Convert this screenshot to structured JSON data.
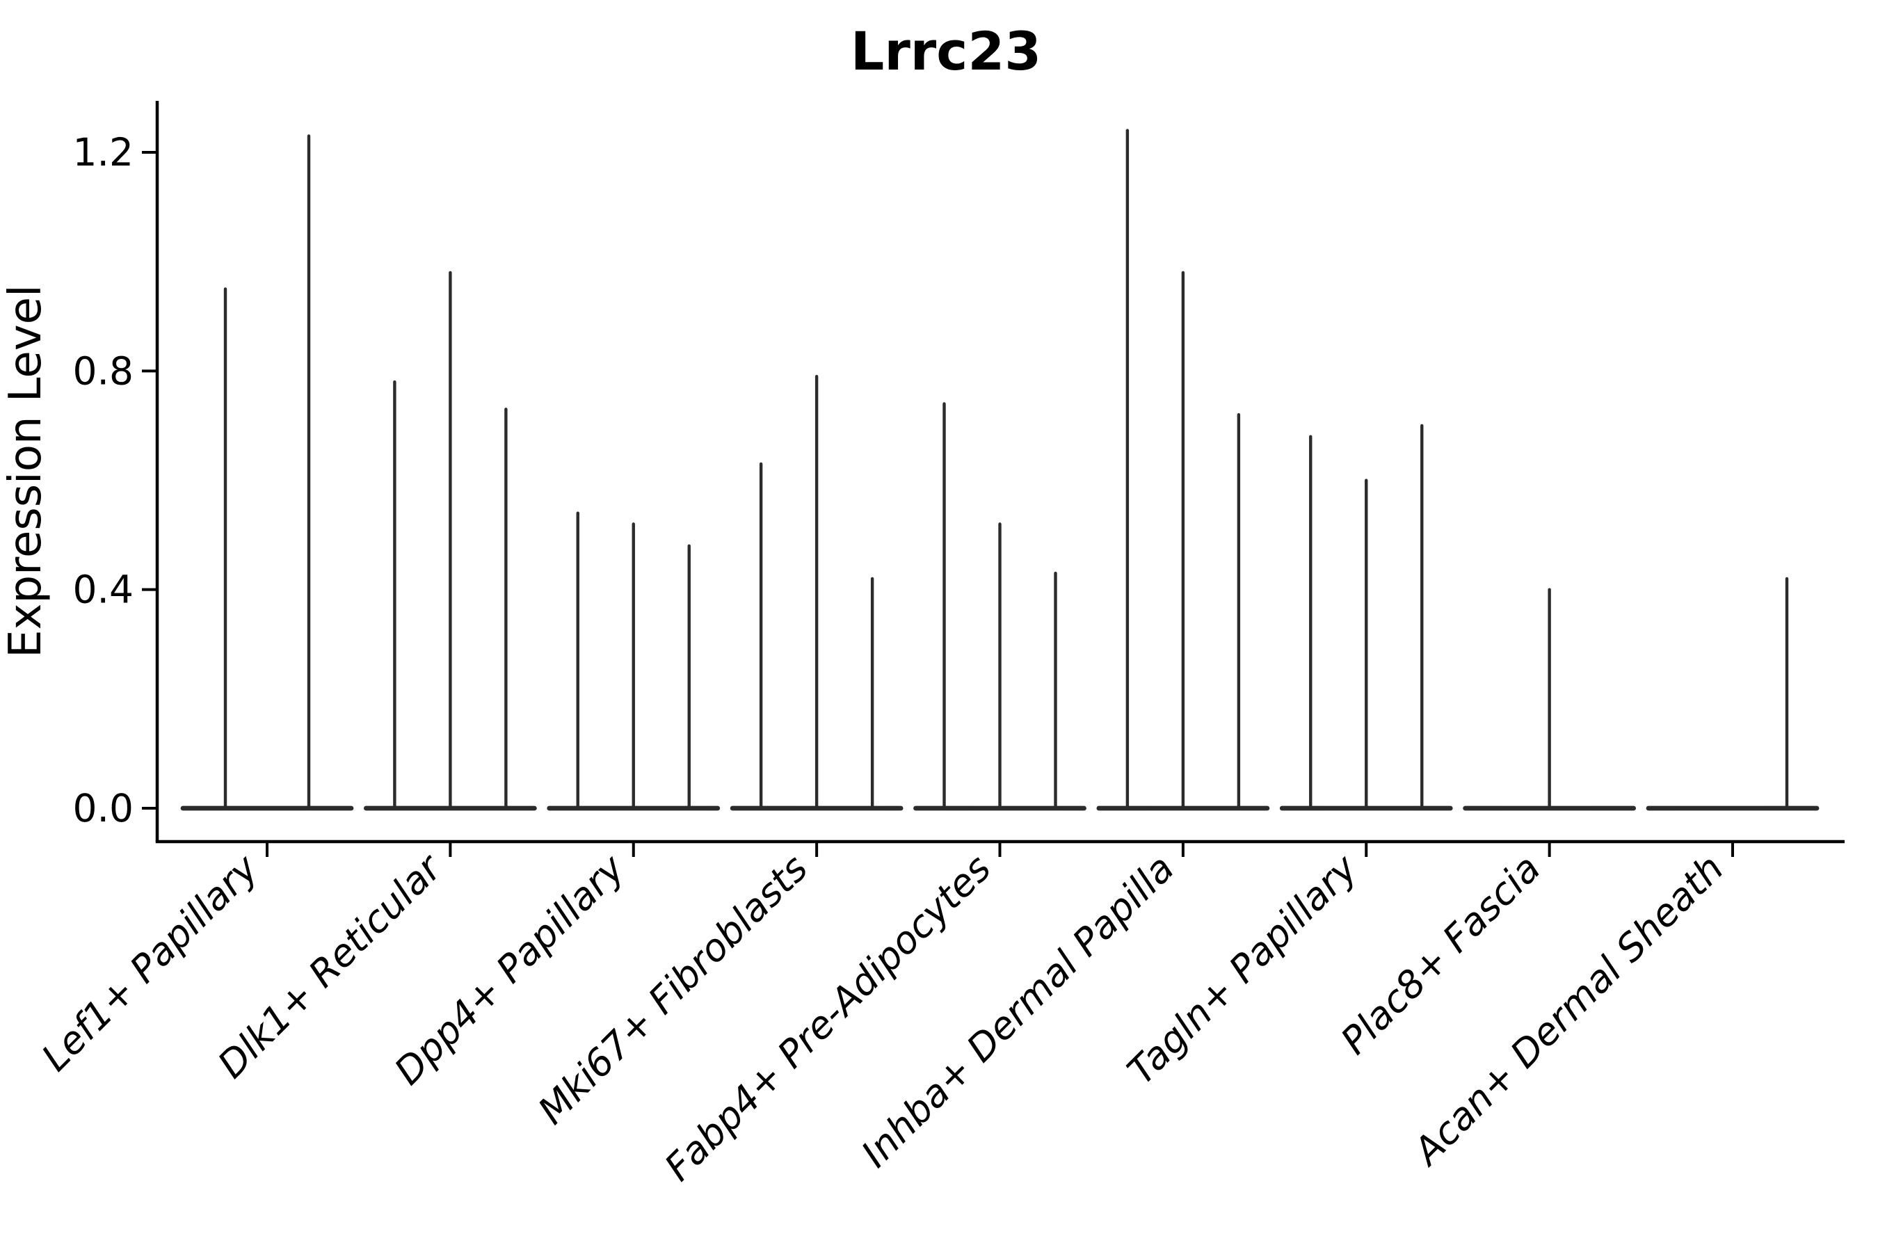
{
  "title": "Lrrc23",
  "ylabel": "Expression Level",
  "colors": {
    "violin": "#2b2b2b",
    "axis": "#000000",
    "background": "#ffffff"
  },
  "chart_data": {
    "type": "violin",
    "title": "Lrrc23",
    "xlabel": "",
    "ylabel": "Expression Level",
    "yticks": [
      "0.0",
      "0.4",
      "0.8",
      "1.2"
    ],
    "ytick_values": [
      0.0,
      0.4,
      0.8,
      1.2
    ],
    "ylim": [
      -0.06,
      1.29
    ],
    "grid": false,
    "legend": "none",
    "categories": [
      "Lef1+ Papillary",
      "Dlk1+ Reticular",
      "Dpp4+ Papillary",
      "Mki67+ Fibroblasts",
      "Fabp4+ Pre-Adipocytes",
      "Inhba+ Dermal Papilla",
      "Tagln+ Papillary",
      "Plac8+ Fascia",
      "Acan+ Dermal Sheath"
    ],
    "groups": [
      {
        "label": "Lef1+ Papillary",
        "violins": [
          {
            "offset": -60,
            "max": 0.95
          },
          {
            "offset": 60,
            "max": 1.23
          }
        ]
      },
      {
        "label": "Dlk1+ Reticular",
        "violins": [
          {
            "offset": -80,
            "max": 0.78
          },
          {
            "offset": 0,
            "max": 0.98
          },
          {
            "offset": 80,
            "max": 0.73
          }
        ]
      },
      {
        "label": "Dpp4+ Papillary",
        "violins": [
          {
            "offset": -80,
            "max": 0.54
          },
          {
            "offset": 0,
            "max": 0.52
          },
          {
            "offset": 80,
            "max": 0.48
          }
        ]
      },
      {
        "label": "Mki67+ Fibroblasts",
        "violins": [
          {
            "offset": -80,
            "max": 0.63
          },
          {
            "offset": 0,
            "max": 0.79
          },
          {
            "offset": 80,
            "max": 0.42
          }
        ]
      },
      {
        "label": "Fabp4+ Pre-Adipocytes",
        "violins": [
          {
            "offset": -80,
            "max": 0.74
          },
          {
            "offset": 0,
            "max": 0.52
          },
          {
            "offset": 80,
            "max": 0.43
          }
        ]
      },
      {
        "label": "Inhba+ Dermal Papilla",
        "violins": [
          {
            "offset": -80,
            "max": 1.24
          },
          {
            "offset": 0,
            "max": 0.98
          },
          {
            "offset": 80,
            "max": 0.72
          }
        ]
      },
      {
        "label": "Tagln+ Papillary",
        "violins": [
          {
            "offset": -80,
            "max": 0.68
          },
          {
            "offset": 0,
            "max": 0.6
          },
          {
            "offset": 80,
            "max": 0.7
          }
        ]
      },
      {
        "label": "Plac8+ Fascia",
        "violins": [
          {
            "offset": 0,
            "max": 0.4
          }
        ]
      },
      {
        "label": "Acan+ Dermal Sheath",
        "violins": [
          {
            "offset": 78,
            "max": 0.42
          }
        ]
      }
    ]
  }
}
